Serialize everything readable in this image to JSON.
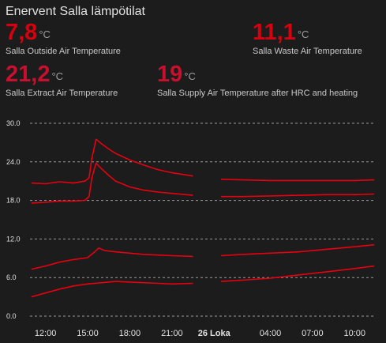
{
  "card": {
    "title": "Enervent Salla lämpötilat"
  },
  "stats": [
    {
      "id": "outside",
      "value": "7,8",
      "unit": "°C",
      "label": "Salla Outside Air Temperature",
      "color": "#d6000f"
    },
    {
      "id": "waste",
      "value": "11,1",
      "unit": "°C",
      "label": "Salla Waste Air Temperature",
      "color": "#d6000f"
    },
    {
      "id": "extract",
      "value": "21,2",
      "unit": "°C",
      "label": "Salla Extract Air Temperature",
      "color": "#c8102e"
    },
    {
      "id": "supply",
      "value": "19",
      "unit": "°C",
      "label": "Salla Supply Air Temperature after HRC and heating",
      "color": "#c8102e"
    }
  ],
  "chart_data": {
    "type": "line",
    "ylim": [
      0,
      30
    ],
    "y_ticks": [
      "0.0",
      "6.0",
      "12.0",
      "18.0",
      "24.0",
      "30.0"
    ],
    "x_ticks": [
      "12:00",
      "15:00",
      "18:00",
      "21:00",
      "26 Loka",
      "04:00",
      "07:00",
      "10:00"
    ],
    "x_tick_hours": [
      12,
      15,
      18,
      21,
      24,
      28,
      31,
      34
    ],
    "xlim_hours": [
      10.9,
      35.5
    ],
    "grid": true,
    "line_color": "#e8000f",
    "series": [
      {
        "x": [
          11,
          12,
          13,
          14,
          14.8,
          15.1,
          15.3,
          15.6,
          16,
          16.5,
          17,
          18,
          19,
          20,
          21,
          22.5,
          24.5,
          26,
          28,
          30,
          32,
          34,
          35.4
        ],
        "y": [
          20.7,
          20.6,
          20.9,
          20.7,
          21.0,
          21.5,
          24.5,
          27.5,
          26.8,
          26.0,
          25.3,
          24.3,
          23.5,
          22.8,
          22.3,
          21.8,
          21.3,
          21.2,
          21.1,
          21.1,
          21.1,
          21.1,
          21.2
        ]
      },
      {
        "x": [
          11,
          12,
          13,
          14,
          14.8,
          15.1,
          15.3,
          15.6,
          16,
          16.5,
          17,
          18,
          19,
          20,
          21,
          22.5,
          24.5,
          26,
          28,
          30,
          32,
          34,
          35.4
        ],
        "y": [
          17.6,
          17.7,
          17.9,
          17.9,
          18.0,
          18.6,
          21.5,
          23.8,
          22.9,
          21.9,
          21.0,
          20.1,
          19.6,
          19.3,
          19.1,
          18.8,
          18.6,
          18.6,
          18.7,
          18.8,
          18.9,
          18.9,
          19.0
        ]
      },
      {
        "x": [
          11,
          12,
          13,
          14,
          15,
          15.5,
          15.8,
          16.2,
          17,
          18,
          19,
          20,
          21,
          22.5,
          24.5,
          26,
          28,
          30,
          32,
          34,
          35.4
        ],
        "y": [
          7.3,
          7.8,
          8.4,
          8.8,
          9.1,
          10.0,
          10.6,
          10.2,
          10.0,
          9.8,
          9.6,
          9.5,
          9.4,
          9.3,
          9.4,
          9.6,
          9.8,
          10.0,
          10.4,
          10.8,
          11.1
        ]
      },
      {
        "x": [
          11,
          12,
          13,
          14,
          15,
          16,
          17,
          18,
          19,
          20,
          21,
          22.5,
          24.5,
          26,
          28,
          30,
          32,
          34,
          35.4
        ],
        "y": [
          3.0,
          3.6,
          4.2,
          4.7,
          5.0,
          5.2,
          5.4,
          5.3,
          5.2,
          5.1,
          5.0,
          5.1,
          5.4,
          5.6,
          5.9,
          6.4,
          6.9,
          7.4,
          7.8
        ]
      }
    ],
    "gap_hours": [
      22.6,
      24.3
    ]
  }
}
